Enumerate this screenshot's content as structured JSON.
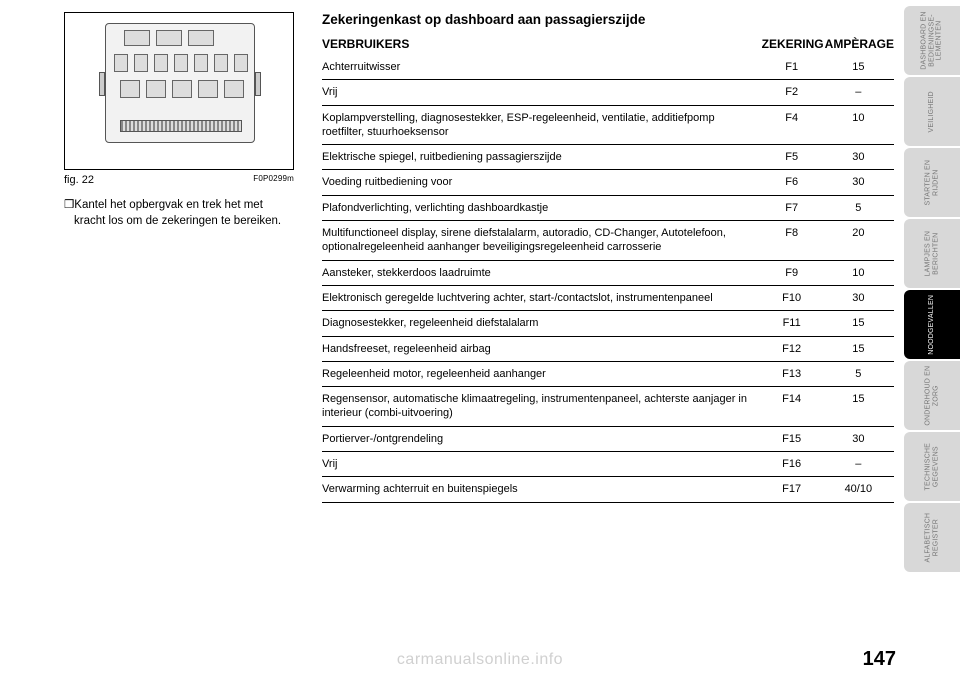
{
  "figure": {
    "caption_label": "fig. 22",
    "image_code": "F0P0299m"
  },
  "body_paragraph": "❒Kantel het opbergvak en trek het met kracht los om de zekeringen te bereiken.",
  "section_title": "Zekeringenkast op dashboard aan passagierszijde",
  "table": {
    "columns": [
      "VERBRUIKERS",
      "ZEKERING",
      "AMPÈRAGE"
    ],
    "rows": [
      [
        "Achterruitwisser",
        "F1",
        "15"
      ],
      [
        "Vrij",
        "F2",
        "–"
      ],
      [
        "Koplampverstelling, diagnosestekker, ESP-regeleenheid, ventilatie, additiefpomp roetfilter, stuurhoeksensor",
        "F4",
        "10"
      ],
      [
        "Elektrische spiegel, ruitbediening passagierszijde",
        "F5",
        "30"
      ],
      [
        "Voeding ruitbediening voor",
        "F6",
        "30"
      ],
      [
        "Plafondverlichting, verlichting dashboardkastje",
        "F7",
        "5"
      ],
      [
        "Multifunctioneel display, sirene diefstalalarm, autoradio, CD-Changer, Autotelefoon, optionalregeleenheid aanhanger beveiligingsregeleenheid carrosserie",
        "F8",
        "20"
      ],
      [
        "Aansteker, stekkerdoos laadruimte",
        "F9",
        "10"
      ],
      [
        "Elektronisch geregelde luchtvering achter, start-/contactslot, instrumentenpaneel",
        "F10",
        "30"
      ],
      [
        "Diagnosestekker, regeleenheid diefstalalarm",
        "F11",
        "15"
      ],
      [
        "Handsfreeset, regeleenheid airbag",
        "F12",
        "15"
      ],
      [
        "Regeleenheid motor, regeleenheid aanhanger",
        "F13",
        "5"
      ],
      [
        "Regensensor, automatische klimaatregeling, instrumentenpaneel, achterste aanjager in interieur (combi-uitvoering)",
        "F14",
        "15"
      ],
      [
        "Portierver-/ontgrendeling",
        "F15",
        "30"
      ],
      [
        "Vrij",
        "F16",
        "–"
      ],
      [
        "Verwarming achterruit en buitenspiegels",
        "F17",
        "40/10"
      ]
    ],
    "col_widths": [
      "auto",
      "64px",
      "64px"
    ],
    "font_size": 11,
    "border_color": "#000000"
  },
  "side_tabs": [
    {
      "label": "DASHBOARD EN\nBEDIENINGSE-\nLEMENTEN",
      "active": false
    },
    {
      "label": "VEILIGHEID",
      "active": false
    },
    {
      "label": "STARTEN EN\nRIJDEN",
      "active": false
    },
    {
      "label": "LAMPJES EN\nBERICHTEN",
      "active": false
    },
    {
      "label": "NOODGEVALLEN",
      "active": true
    },
    {
      "label": "ONDERHOUD EN\nZORG",
      "active": false
    },
    {
      "label": "TECHNISCHE\nGEGEVENS",
      "active": false
    },
    {
      "label": "ALFABETISCH\nREGISTER",
      "active": false
    }
  ],
  "page_number": "147",
  "watermark": "carmanualsonline.info",
  "palette": {
    "tab_inactive_bg": "#d8d8d8",
    "tab_inactive_fg": "#777777",
    "tab_active_bg": "#000000",
    "tab_active_fg": "#ffffff",
    "page_bg": "#ffffff",
    "text": "#000000",
    "watermark": "#d0d0d0"
  }
}
